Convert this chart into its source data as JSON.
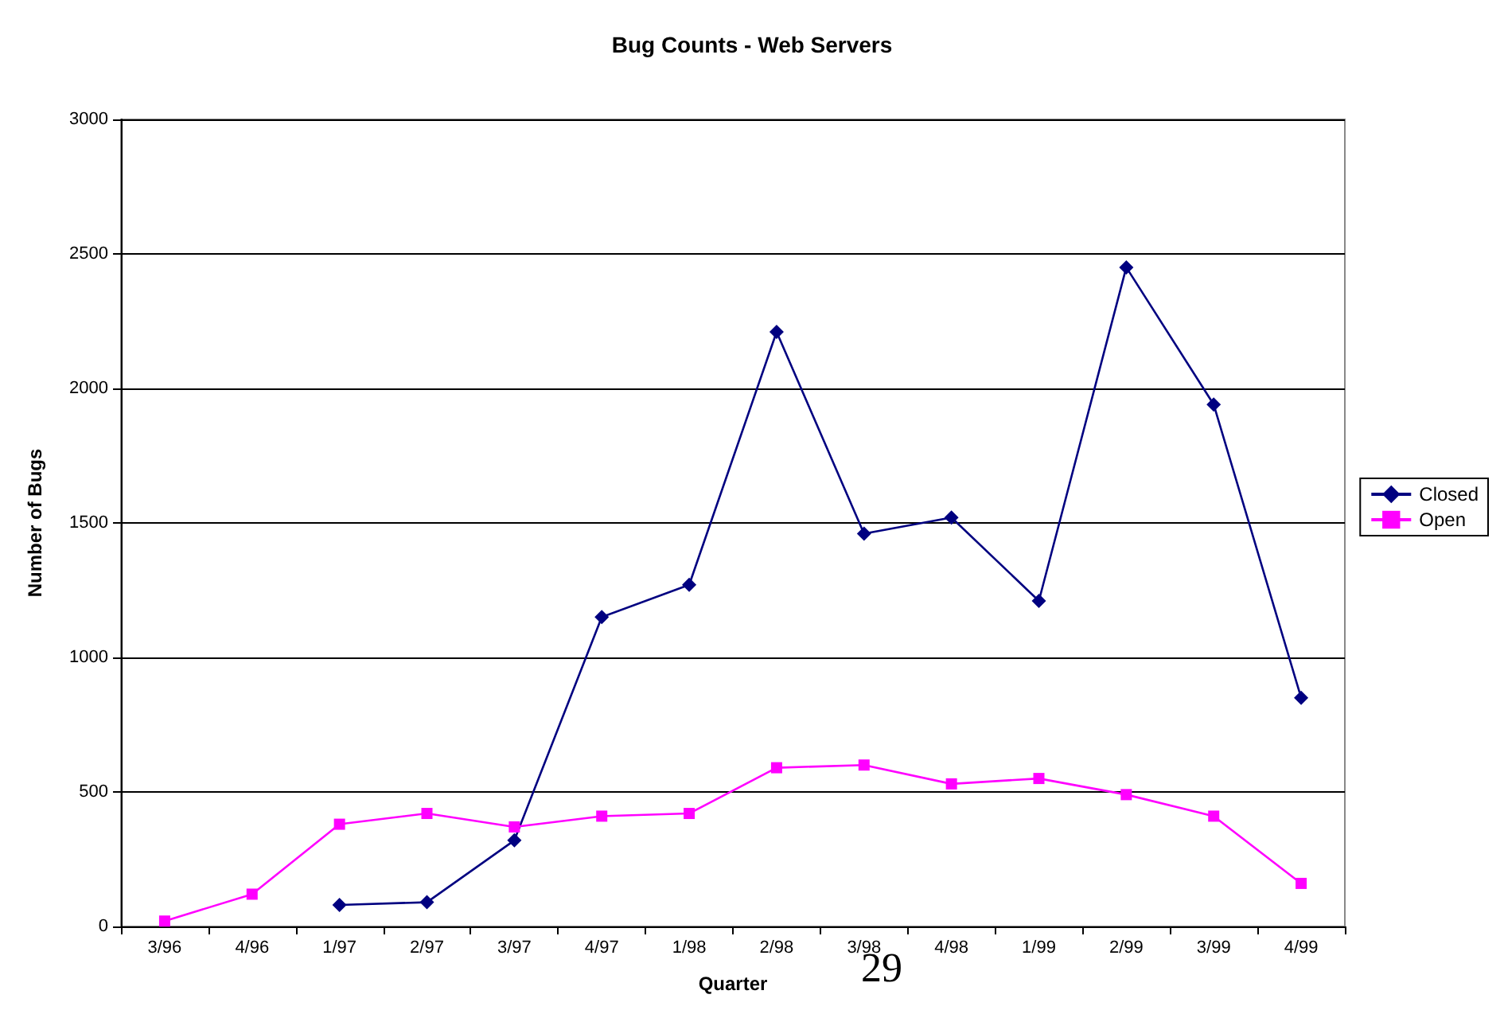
{
  "chart_data": {
    "type": "line",
    "title": "Bug Counts - Web Servers",
    "xlabel": "Quarter",
    "ylabel": "Number of Bugs",
    "categories": [
      "3/96",
      "4/96",
      "1/97",
      "2/97",
      "3/97",
      "4/97",
      "1/98",
      "2/98",
      "3/98",
      "4/98",
      "1/99",
      "2/99",
      "3/99",
      "4/99"
    ],
    "series": [
      {
        "name": "Closed",
        "color": "#000080",
        "marker": "diamond",
        "values": [
          null,
          null,
          80,
          90,
          320,
          1150,
          1270,
          2210,
          1460,
          1520,
          1210,
          2450,
          1940,
          850
        ]
      },
      {
        "name": "Open",
        "color": "#ff00ff",
        "marker": "square",
        "values": [
          20,
          120,
          380,
          420,
          370,
          410,
          420,
          590,
          600,
          530,
          550,
          490,
          410,
          160
        ]
      }
    ],
    "ylim": [
      0,
      3000
    ],
    "yticks": [
      0,
      500,
      1000,
      1500,
      2000,
      2500,
      3000
    ],
    "grid": "y",
    "legend": "right",
    "line_style": "solid",
    "annotations": [
      "29"
    ]
  }
}
